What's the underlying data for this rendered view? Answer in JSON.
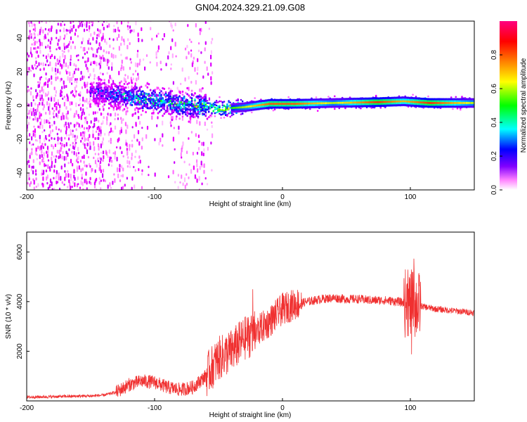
{
  "chart_data": [
    {
      "type": "heatmap",
      "title": "GN04.2024.329.21.09.G08",
      "xlabel": "Height of straight line (km)",
      "ylabel": "Frequency (Hz)",
      "xlim": [
        -200,
        150
      ],
      "ylim": [
        -50,
        50
      ],
      "xticks": [
        -200,
        -100,
        0,
        100
      ],
      "yticks": [
        -40,
        -20,
        0,
        20,
        40
      ],
      "colorbar": {
        "label": "Normalized spectral amplitude",
        "range": [
          0,
          1
        ],
        "ticks": [
          "0.0",
          "0.2",
          "0.4",
          "0.6",
          "0.8"
        ],
        "colormap": [
          "#ffffff",
          "#ff00ff",
          "#8000ff",
          "#0000ff",
          "#00ffff",
          "#00ff00",
          "#ffff00",
          "#ff8000",
          "#ff0000",
          "#ff0080"
        ]
      },
      "ridge": {
        "description": "dominant frequency band vs height",
        "points": [
          {
            "x": -150,
            "y": 8,
            "amp": 0.25
          },
          {
            "x": -130,
            "y": 6,
            "amp": 0.35
          },
          {
            "x": -110,
            "y": 4,
            "amp": 0.45
          },
          {
            "x": -90,
            "y": 2,
            "amp": 0.45
          },
          {
            "x": -70,
            "y": 0,
            "amp": 0.5
          },
          {
            "x": -50,
            "y": -2,
            "amp": 0.55
          },
          {
            "x": -30,
            "y": -1,
            "amp": 0.7
          },
          {
            "x": -10,
            "y": 1,
            "amp": 0.9
          },
          {
            "x": 10,
            "y": 1,
            "amp": 0.9
          },
          {
            "x": 40,
            "y": 1.5,
            "amp": 0.7
          },
          {
            "x": 75,
            "y": 2,
            "amp": 0.95
          },
          {
            "x": 95,
            "y": 2.5,
            "amp": 0.8
          },
          {
            "x": 115,
            "y": 1.5,
            "amp": 0.95
          },
          {
            "x": 150,
            "y": 1.5,
            "amp": 0.7
          }
        ]
      }
    },
    {
      "type": "line",
      "title": "",
      "xlabel": "Height of straight line (km)",
      "ylabel": "SNR (10 * v/v)",
      "xlim": [
        -200,
        150
      ],
      "ylim": [
        0,
        6800
      ],
      "xticks": [
        -200,
        -100,
        0,
        100
      ],
      "yticks": [
        2000,
        4000,
        6000
      ],
      "series": [
        {
          "name": "SNR",
          "color": "#f03030",
          "x": [
            -200,
            -190,
            -180,
            -170,
            -160,
            -150,
            -140,
            -130,
            -120,
            -110,
            -100,
            -90,
            -80,
            -70,
            -60,
            -50,
            -40,
            -30,
            -20,
            -10,
            0,
            10,
            20,
            30,
            40,
            50,
            60,
            70,
            80,
            90,
            95,
            100,
            105,
            110,
            120,
            130,
            140,
            150
          ],
          "y": [
            150,
            160,
            170,
            180,
            190,
            200,
            230,
            350,
            650,
            800,
            750,
            550,
            450,
            550,
            1000,
            1700,
            2000,
            2500,
            2800,
            3200,
            3700,
            3900,
            4000,
            4100,
            4150,
            4100,
            4100,
            4050,
            4050,
            4000,
            3950,
            3900,
            3850,
            3800,
            3700,
            3650,
            3600,
            3550
          ]
        }
      ]
    }
  ]
}
